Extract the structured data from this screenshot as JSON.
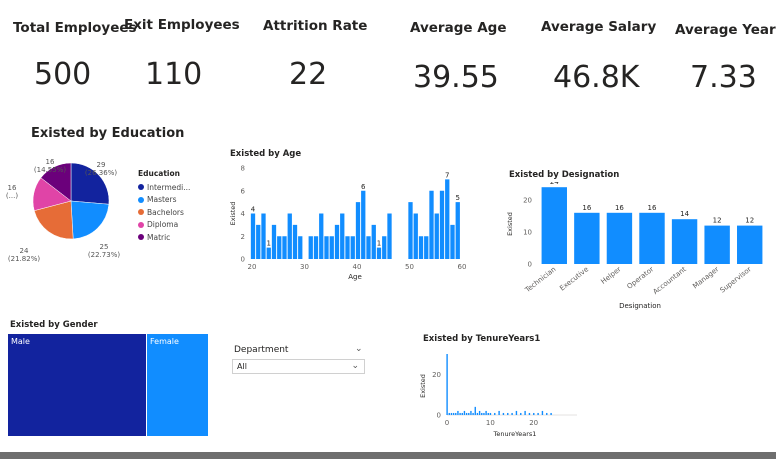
{
  "kpis": [
    {
      "label": "Total Employees",
      "value": "500"
    },
    {
      "label": "Exit Employees",
      "value": "110"
    },
    {
      "label": "Attrition Rate",
      "value": "22"
    },
    {
      "label": "Average Age",
      "value": "39.55"
    },
    {
      "label": "Average Salary",
      "value": "46.8K"
    },
    {
      "label": "Average Year",
      "value": "7.33"
    }
  ],
  "education": {
    "title": "Existed by Education",
    "legend_title": "Education",
    "legend": [
      "Intermedi...",
      "Masters",
      "Bachelors",
      "Diploma",
      "Matric"
    ],
    "slice_labels": [
      {
        "count": "29",
        "pct": "(26.36%)"
      },
      {
        "count": "25",
        "pct": "(22.73%)"
      },
      {
        "count": "24",
        "pct": "(21.82%)"
      },
      {
        "count": "16",
        "pct": "(...)"
      },
      {
        "count": "16",
        "pct": "(14.55%)"
      }
    ]
  },
  "gender": {
    "title": "Existed by Gender",
    "male": "Male",
    "female": "Female"
  },
  "slicer": {
    "title": "Department",
    "value": "All"
  },
  "colors": {
    "accent_blue": "#118dff",
    "dark_blue": "#12239e",
    "orange": "#e66c37",
    "pink": "#e044a7",
    "purple": "#6b007b",
    "bottom_bar": "#6e6e6e"
  },
  "chart_data": [
    {
      "id": "education",
      "type": "pie",
      "title": "Existed by Education",
      "legend_title": "Education",
      "slices": [
        {
          "name": "Intermedi...",
          "value": 29,
          "label": "29 (26.36%)",
          "color": "#12239e"
        },
        {
          "name": "Masters",
          "value": 25,
          "label": "25 (22.73%)",
          "color": "#118dff"
        },
        {
          "name": "Bachelors",
          "value": 24,
          "label": "24 (21.82%)",
          "color": "#e66c37"
        },
        {
          "name": "Diploma",
          "value": 16,
          "label": "16 (...)",
          "color": "#e044a7"
        },
        {
          "name": "Matric",
          "value": 16,
          "label": "16 (14.55%)",
          "color": "#6b007b"
        }
      ]
    },
    {
      "id": "age",
      "type": "bar",
      "title": "Existed by Age",
      "xlabel": "Age",
      "ylabel": "Existed",
      "xlim": [
        20,
        60
      ],
      "ylim": [
        0,
        8
      ],
      "xticks": [
        20,
        30,
        40,
        50,
        60
      ],
      "yticks": [
        0,
        2,
        4,
        6,
        8
      ],
      "x": [
        20,
        21,
        22,
        23,
        24,
        25,
        26,
        27,
        28,
        29,
        31,
        32,
        33,
        34,
        35,
        36,
        37,
        38,
        39,
        40,
        41,
        42,
        43,
        44,
        45,
        46,
        50,
        51,
        52,
        53,
        54,
        55,
        56,
        57,
        58,
        59
      ],
      "values": [
        4,
        3,
        4,
        1,
        3,
        2,
        2,
        4,
        3,
        2,
        2,
        2,
        4,
        2,
        2,
        3,
        4,
        2,
        2,
        5,
        6,
        2,
        3,
        1,
        2,
        4,
        5,
        4,
        2,
        2,
        6,
        4,
        6,
        7,
        3,
        5
      ],
      "data_labels": [
        {
          "x": 20,
          "text": "4"
        },
        {
          "x": 23,
          "text": "1"
        },
        {
          "x": 41,
          "text": "6"
        },
        {
          "x": 44,
          "text": "1"
        },
        {
          "x": 57,
          "text": "7"
        },
        {
          "x": 59,
          "text": "5"
        }
      ],
      "color": "#118dff"
    },
    {
      "id": "designation",
      "type": "bar",
      "title": "Existed by Designation",
      "xlabel": "Designation",
      "ylabel": "Existed",
      "ylim": [
        0,
        20
      ],
      "yticks": [
        0,
        10,
        20
      ],
      "categories": [
        "Technician",
        "Executive",
        "Helper",
        "Operator",
        "Accountant",
        "Manager",
        "Supervisor"
      ],
      "values": [
        24,
        16,
        16,
        16,
        14,
        12,
        12
      ],
      "color": "#118dff"
    },
    {
      "id": "tenure",
      "type": "bar",
      "title": "Existed by TenureYears1",
      "xlabel": "TenureYears1",
      "ylabel": "Existed",
      "ylim": [
        0,
        30
      ],
      "yticks": [
        0,
        20
      ],
      "xticks": [
        0,
        10,
        20
      ],
      "x": [
        0,
        0.5,
        1,
        1.5,
        2,
        2.5,
        3,
        3.5,
        4,
        4.5,
        5,
        5.5,
        6,
        6.5,
        7,
        7.5,
        8,
        8.5,
        9,
        9.5,
        10,
        11,
        12,
        13,
        14,
        15,
        16,
        17,
        18,
        19,
        20,
        21,
        22,
        23,
        24
      ],
      "values": [
        30,
        1,
        1,
        1,
        1,
        2,
        1,
        1,
        2,
        1,
        1,
        2,
        1,
        4,
        1,
        2,
        1,
        1,
        2,
        1,
        1,
        1,
        2,
        1,
        1,
        1,
        2,
        1,
        2,
        1,
        1,
        1,
        2,
        1,
        1
      ],
      "color": "#118dff"
    }
  ]
}
